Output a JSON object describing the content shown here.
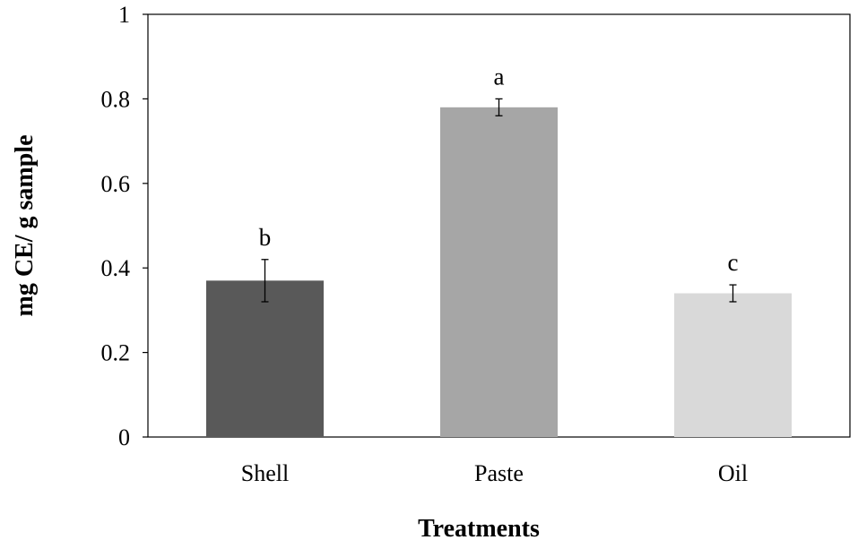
{
  "chart_data": {
    "type": "bar",
    "categories": [
      "Shell",
      "Paste",
      "Oil"
    ],
    "values": [
      0.37,
      0.78,
      0.34
    ],
    "errors": [
      0.05,
      0.02,
      0.02
    ],
    "significance_letters": [
      "b",
      "a",
      "c"
    ],
    "bar_colors": [
      "#595959",
      "#a6a6a6",
      "#d9d9d9"
    ],
    "xlabel": "Treatments",
    "ylabel": "mg  CE/ g sample",
    "ylim": [
      0,
      1
    ],
    "yticks": [
      0,
      0.2,
      0.4,
      0.6,
      0.8,
      1
    ],
    "ytick_labels": [
      "0",
      "0.2",
      "0.4",
      "0.6",
      "0.8",
      "1"
    ],
    "grid": false,
    "legend": "none"
  }
}
